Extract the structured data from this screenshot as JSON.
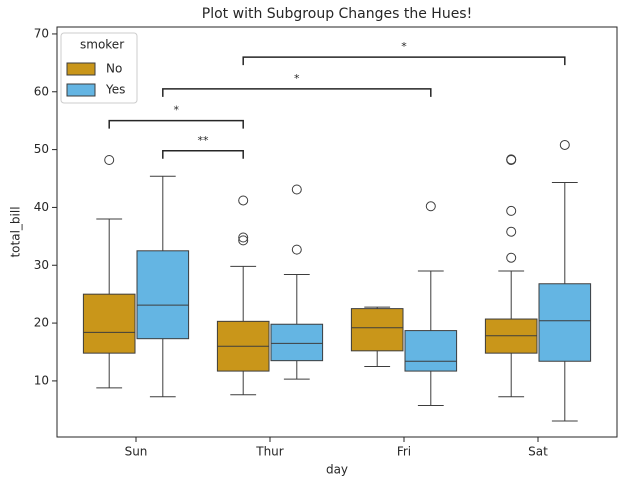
{
  "chart_data": {
    "type": "box",
    "title": "Plot with Subgroup Changes the Hues!",
    "x_label": "day",
    "y_label": "total_bill",
    "categories": [
      "Sun",
      "Thur",
      "Fri",
      "Sat"
    ],
    "legend_title": "smoker",
    "legend": "upper left",
    "ylim": [
      0.3,
      71.2
    ],
    "yticks": [
      10,
      20,
      30,
      40,
      50,
      60,
      70
    ],
    "series": [
      {
        "name": "No",
        "color": "#c9961a",
        "values": [
          {
            "whislo": 8.8,
            "q1": 14.8,
            "med": 18.4,
            "q3": 25.0,
            "whishi": 38.0,
            "fliers": [
              48.2
            ]
          },
          {
            "whislo": 7.6,
            "q1": 11.7,
            "med": 16.0,
            "q3": 20.3,
            "whishi": 29.8,
            "fliers": [
              34.3,
              34.8,
              41.2
            ]
          },
          {
            "whislo": 12.5,
            "q1": 15.2,
            "med": 19.2,
            "q3": 22.5,
            "whishi": 22.75,
            "fliers": []
          },
          {
            "whislo": 7.25,
            "q1": 14.8,
            "med": 17.8,
            "q3": 20.7,
            "whishi": 29.0,
            "fliers": [
              31.3,
              35.8,
              39.4,
              48.2,
              48.3
            ]
          }
        ]
      },
      {
        "name": "Yes",
        "color": "#64b5e3",
        "values": [
          {
            "whislo": 7.25,
            "q1": 17.3,
            "med": 23.1,
            "q3": 32.5,
            "whishi": 45.4,
            "fliers": []
          },
          {
            "whislo": 10.3,
            "q1": 13.5,
            "med": 16.5,
            "q3": 19.8,
            "whishi": 28.4,
            "fliers": [
              32.7,
              43.1
            ]
          },
          {
            "whislo": 5.75,
            "q1": 11.7,
            "med": 13.4,
            "q3": 18.7,
            "whishi": 29.0,
            "fliers": [
              40.2
            ]
          },
          {
            "whislo": 3.07,
            "q1": 13.4,
            "med": 20.4,
            "q3": 26.8,
            "whishi": 44.3,
            "fliers": [
              50.8
            ]
          }
        ]
      }
    ],
    "annotations": [
      {
        "from": [
          0,
          1
        ],
        "to": [
          1,
          0
        ],
        "y": 49.8,
        "text": "**"
      },
      {
        "from": [
          0,
          0
        ],
        "to": [
          1,
          0
        ],
        "y": 55.0,
        "text": "*"
      },
      {
        "from": [
          0,
          1
        ],
        "to": [
          2,
          1
        ],
        "y": 60.5,
        "text": "*"
      },
      {
        "from": [
          1,
          0
        ],
        "to": [
          3,
          1
        ],
        "y": 66.0,
        "text": "*"
      }
    ]
  }
}
